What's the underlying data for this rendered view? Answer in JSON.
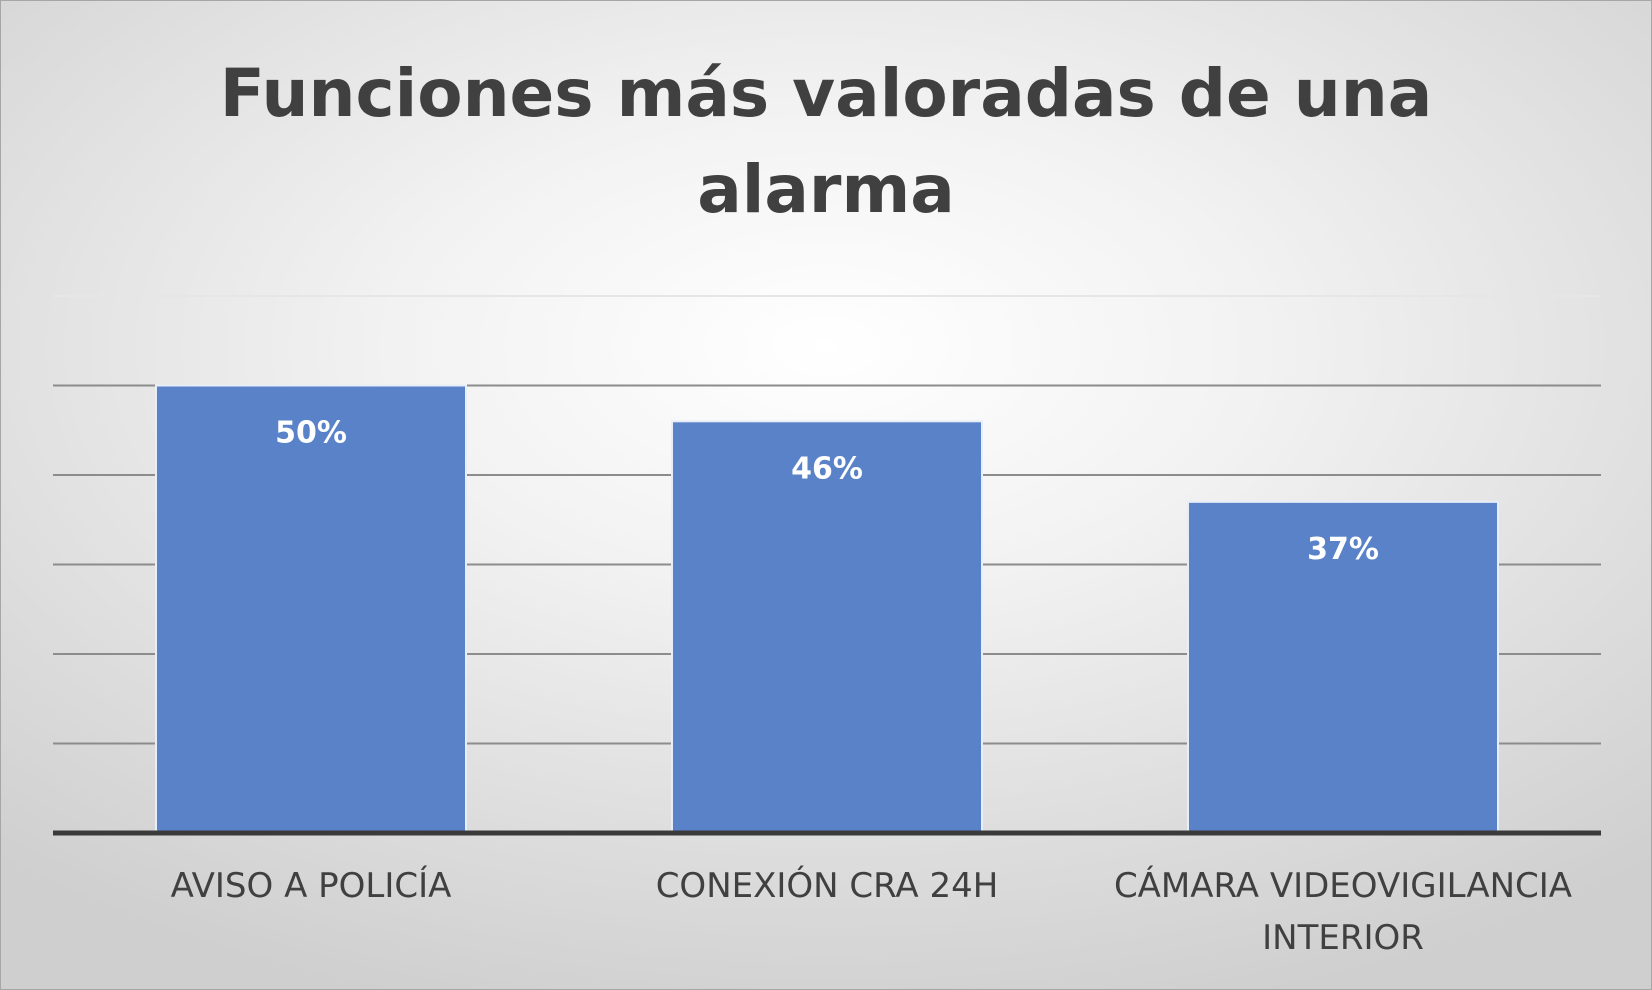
{
  "chart_data": {
    "type": "bar",
    "title": "Funciones más valoradas de una alarma",
    "categories": [
      [
        "AVISO A POLICÍA"
      ],
      [
        "CONEXIÓN CRA 24H"
      ],
      [
        "CÁMARA VIDEOVIGILANCIA",
        "INTERIOR"
      ]
    ],
    "values": [
      50,
      46,
      37
    ],
    "value_labels": [
      "50%",
      "46%",
      "37%"
    ],
    "unit": "%",
    "ylim": [
      0,
      60
    ],
    "grid": true,
    "legend": "none",
    "colors": {
      "bar": "#5a82c9",
      "bar_edge": "#e8eef8",
      "gridline": "#8c8c8c",
      "axis": "#3a3a3a",
      "text": "#404040"
    }
  }
}
